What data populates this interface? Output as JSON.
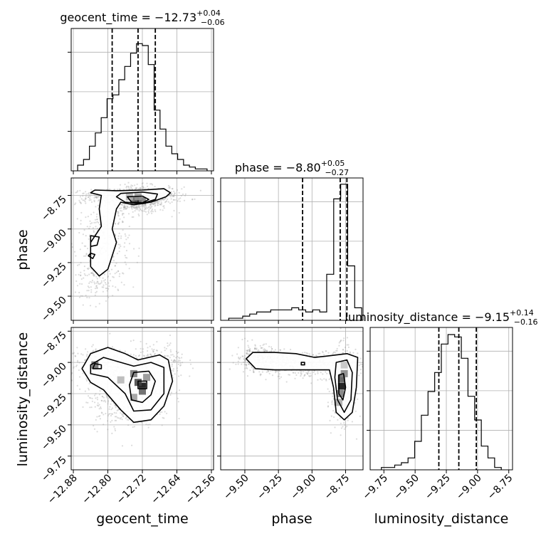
{
  "chart_data": {
    "type": "corner",
    "parameters": [
      "geocent_time",
      "phase",
      "luminosity_distance"
    ],
    "titles": [
      {
        "param": "geocent_time",
        "prefix": "geocent_time = ",
        "median": "−12.73",
        "plus": "+0.04",
        "minus": "−0.06"
      },
      {
        "param": "phase",
        "prefix": "phase = ",
        "median": "−8.80",
        "plus": "+0.05",
        "minus": "−0.27"
      },
      {
        "param": "luminosity_distance",
        "prefix": "luminosity_distance = ",
        "median": "−9.15",
        "plus": "+0.14",
        "minus": "−0.16"
      }
    ],
    "axes": {
      "geocent_time": {
        "range": [
          -12.885,
          -12.555
        ],
        "ticks": [
          -12.88,
          -12.8,
          -12.72,
          -12.64,
          -12.56
        ],
        "tick_labels": [
          "−12.88",
          "−12.80",
          "−12.72",
          "−12.64",
          "−12.56"
        ]
      },
      "phase": {
        "range": [
          -9.68,
          -8.62
        ],
        "ticks": [
          -9.5,
          -9.25,
          -9.0,
          -8.75
        ],
        "tick_labels": [
          "−9.50",
          "−9.25",
          "−9.00",
          "−8.75"
        ]
      },
      "luminosity_distance": {
        "range": [
          -9.86,
          -8.72
        ],
        "ticks": [
          -9.75,
          -9.5,
          -9.25,
          -9.0,
          -8.75
        ],
        "tick_labels": [
          "−9.75",
          "−9.50",
          "−9.25",
          "−9.00",
          "−8.75"
        ]
      }
    },
    "quantiles": {
      "geocent_time": [
        -12.79,
        -12.73,
        -12.69
      ],
      "phase": [
        -9.07,
        -8.79,
        -8.74
      ],
      "luminosity_distance": [
        -9.31,
        -9.15,
        -9.01
      ]
    },
    "histograms": {
      "geocent_time": {
        "edges_range": [
          -12.87,
          -12.57
        ],
        "counts": [
          3,
          6,
          13,
          20,
          28,
          38,
          40,
          48,
          55,
          62,
          67,
          66,
          56,
          32,
          22,
          13,
          9,
          6,
          3,
          2,
          1,
          1
        ],
        "ylim": [
          0,
          75
        ]
      },
      "phase": {
        "edges_range": [
          -9.62,
          -8.63
        ],
        "counts": [
          1,
          1,
          2,
          3,
          4,
          4,
          5,
          5,
          5,
          6,
          5,
          4,
          5,
          4,
          22,
          58,
          65,
          26,
          6
        ],
        "ylim": [
          0,
          68
        ]
      },
      "luminosity_distance": {
        "edges_range": [
          -9.77,
          -8.81
        ],
        "counts": [
          1,
          1,
          2,
          3,
          5,
          12,
          23,
          33,
          41,
          53,
          57,
          56,
          47,
          31,
          21,
          10,
          5,
          1
        ],
        "ylim": [
          0,
          60
        ]
      }
    },
    "density": {
      "phase_vs_geocent_time": {
        "x": "geocent_time",
        "y": "phase",
        "blobs": [
          {
            "cx": -12.73,
            "cy": -8.78,
            "sx": 0.035,
            "sy": 0.05,
            "weight": 0.42
          },
          {
            "cx": -12.79,
            "cy": -8.76,
            "sx": 0.06,
            "sy": 0.03,
            "weight": 0.18
          },
          {
            "cx": -12.69,
            "cy": -8.75,
            "sx": 0.04,
            "sy": 0.03,
            "weight": 0.12
          },
          {
            "cx": -12.81,
            "cy": -9.1,
            "sx": 0.03,
            "sy": 0.14,
            "weight": 0.2
          },
          {
            "cx": -12.83,
            "cy": -9.4,
            "sx": 0.03,
            "sy": 0.08,
            "weight": 0.08
          }
        ],
        "peak_cells": [
          {
            "x": -12.73,
            "y": -8.79,
            "shade": 0.0
          },
          {
            "x": -12.74,
            "y": -8.79,
            "shade": 0.35
          },
          {
            "x": -12.72,
            "y": -8.79,
            "shade": 0.45
          },
          {
            "x": -12.73,
            "y": -8.76,
            "shade": 0.6
          },
          {
            "x": -12.75,
            "y": -8.76,
            "shade": 0.7
          }
        ]
      },
      "luminosity_distance_vs_geocent_time": {
        "x": "geocent_time",
        "y": "luminosity_distance",
        "blobs": [
          {
            "cx": -12.72,
            "cy": -9.19,
            "sx": 0.03,
            "sy": 0.12,
            "weight": 0.38
          },
          {
            "cx": -12.81,
            "cy": -9.02,
            "sx": 0.04,
            "sy": 0.07,
            "weight": 0.25
          },
          {
            "cx": -12.77,
            "cy": -9.3,
            "sx": 0.04,
            "sy": 0.12,
            "weight": 0.22
          },
          {
            "cx": -12.68,
            "cy": -9.0,
            "sx": 0.03,
            "sy": 0.08,
            "weight": 0.15
          }
        ],
        "peak_cells": [
          {
            "x": -12.72,
            "y": -9.19,
            "shade": 0.0
          },
          {
            "x": -12.73,
            "y": -9.16,
            "shade": 0.25
          },
          {
            "x": -12.72,
            "y": -9.23,
            "shade": 0.35
          },
          {
            "x": -12.74,
            "y": -9.09,
            "shade": 0.45
          },
          {
            "x": -12.83,
            "y": -9.02,
            "shade": 0.4
          },
          {
            "x": -12.71,
            "y": -9.12,
            "shade": 0.55
          },
          {
            "x": -12.74,
            "y": -9.28,
            "shade": 0.6
          },
          {
            "x": -12.77,
            "y": -9.14,
            "shade": 0.7
          }
        ]
      },
      "luminosity_distance_vs_phase": {
        "x": "phase",
        "y": "luminosity_distance",
        "blobs": [
          {
            "cx": -8.77,
            "cy": -9.19,
            "sx": 0.04,
            "sy": 0.14,
            "weight": 0.45
          },
          {
            "cx": -9.05,
            "cy": -9.02,
            "sx": 0.22,
            "sy": 0.05,
            "weight": 0.35
          },
          {
            "cx": -9.4,
            "cy": -8.96,
            "sx": 0.08,
            "sy": 0.05,
            "weight": 0.2
          }
        ],
        "peak_cells": [
          {
            "x": -8.78,
            "y": -9.19,
            "shade": 0.0
          },
          {
            "x": -8.78,
            "y": -9.13,
            "shade": 0.3
          },
          {
            "x": -8.76,
            "y": -9.09,
            "shade": 0.5
          },
          {
            "x": -8.79,
            "y": -9.25,
            "shade": 0.45
          },
          {
            "x": -8.8,
            "y": -9.32,
            "shade": 0.65
          },
          {
            "x": -8.76,
            "y": -9.02,
            "shade": 0.75
          }
        ]
      }
    },
    "contours": {
      "phase_vs_geocent_time": [
        [
          [
            -12.83,
            -8.71
          ],
          [
            -12.78,
            -8.715
          ],
          [
            -12.72,
            -8.71
          ],
          [
            -12.67,
            -8.7
          ],
          [
            -12.655,
            -8.73
          ],
          [
            -12.665,
            -8.76
          ],
          [
            -12.7,
            -8.8
          ],
          [
            -12.74,
            -8.82
          ],
          [
            -12.77,
            -8.8
          ],
          [
            -12.78,
            -8.85
          ],
          [
            -12.79,
            -9.0
          ],
          [
            -12.78,
            -9.1
          ],
          [
            -12.79,
            -9.2
          ],
          [
            -12.8,
            -9.3
          ],
          [
            -12.82,
            -9.35
          ],
          [
            -12.84,
            -9.28
          ],
          [
            -12.84,
            -9.1
          ],
          [
            -12.815,
            -8.98
          ],
          [
            -12.82,
            -8.85
          ],
          [
            -12.815,
            -8.75
          ],
          [
            -12.84,
            -8.73
          ],
          [
            -12.83,
            -8.71
          ]
        ],
        [
          [
            -12.77,
            -8.735
          ],
          [
            -12.72,
            -8.725
          ],
          [
            -12.685,
            -8.74
          ],
          [
            -12.69,
            -8.78
          ],
          [
            -12.72,
            -8.81
          ],
          [
            -12.76,
            -8.8
          ],
          [
            -12.78,
            -8.76
          ],
          [
            -12.77,
            -8.735
          ]
        ],
        [
          [
            -12.755,
            -8.76
          ],
          [
            -12.72,
            -8.755
          ],
          [
            -12.705,
            -8.78
          ],
          [
            -12.72,
            -8.805
          ],
          [
            -12.745,
            -8.8
          ],
          [
            -12.755,
            -8.76
          ]
        ],
        [
          [
            -12.84,
            -9.05
          ],
          [
            -12.82,
            -9.06
          ],
          [
            -12.825,
            -9.12
          ],
          [
            -12.84,
            -9.13
          ],
          [
            -12.84,
            -9.05
          ]
        ],
        [
          [
            -12.84,
            -9.18
          ],
          [
            -12.83,
            -9.19
          ],
          [
            -12.835,
            -9.22
          ],
          [
            -12.845,
            -9.2
          ],
          [
            -12.84,
            -9.18
          ]
        ]
      ],
      "luminosity_distance_vs_geocent_time": [
        [
          [
            -12.86,
            -9.05
          ],
          [
            -12.84,
            -8.93
          ],
          [
            -12.8,
            -8.88
          ],
          [
            -12.76,
            -8.93
          ],
          [
            -12.73,
            -8.98
          ],
          [
            -12.68,
            -8.94
          ],
          [
            -12.66,
            -8.98
          ],
          [
            -12.65,
            -9.15
          ],
          [
            -12.67,
            -9.35
          ],
          [
            -12.7,
            -9.46
          ],
          [
            -12.74,
            -9.48
          ],
          [
            -12.77,
            -9.38
          ],
          [
            -12.81,
            -9.22
          ],
          [
            -12.84,
            -9.16
          ],
          [
            -12.86,
            -9.05
          ]
        ],
        [
          [
            -12.84,
            -9.02
          ],
          [
            -12.81,
            -8.96
          ],
          [
            -12.77,
            -9.0
          ],
          [
            -12.74,
            -9.03
          ],
          [
            -12.7,
            -9.0
          ],
          [
            -12.67,
            -9.04
          ],
          [
            -12.67,
            -9.25
          ],
          [
            -12.7,
            -9.38
          ],
          [
            -12.74,
            -9.39
          ],
          [
            -12.76,
            -9.25
          ],
          [
            -12.8,
            -9.12
          ],
          [
            -12.84,
            -9.09
          ],
          [
            -12.84,
            -9.02
          ]
        ],
        [
          [
            -12.74,
            -9.08
          ],
          [
            -12.705,
            -9.07
          ],
          [
            -12.69,
            -9.15
          ],
          [
            -12.7,
            -9.26
          ],
          [
            -12.72,
            -9.32
          ],
          [
            -12.745,
            -9.3
          ],
          [
            -12.75,
            -9.18
          ],
          [
            -12.74,
            -9.08
          ]
        ],
        [
          [
            -12.83,
            -9.01
          ],
          [
            -12.815,
            -9.02
          ],
          [
            -12.815,
            -9.05
          ],
          [
            -12.835,
            -9.05
          ],
          [
            -12.83,
            -9.01
          ]
        ],
        [
          [
            -12.73,
            -9.15
          ],
          [
            -12.71,
            -9.15
          ],
          [
            -12.71,
            -9.21
          ],
          [
            -12.73,
            -9.21
          ],
          [
            -12.73,
            -9.15
          ]
        ]
      ],
      "luminosity_distance_vs_phase": [
        [
          [
            -9.49,
            -8.97
          ],
          [
            -9.44,
            -8.92
          ],
          [
            -9.28,
            -8.92
          ],
          [
            -9.12,
            -8.93
          ],
          [
            -8.98,
            -8.96
          ],
          [
            -8.9,
            -8.95
          ],
          [
            -8.74,
            -8.93
          ],
          [
            -8.66,
            -8.96
          ],
          [
            -8.67,
            -9.2
          ],
          [
            -8.7,
            -9.4
          ],
          [
            -8.76,
            -9.46
          ],
          [
            -8.82,
            -9.4
          ],
          [
            -8.84,
            -9.2
          ],
          [
            -8.87,
            -9.06
          ],
          [
            -8.96,
            -9.06
          ],
          [
            -9.1,
            -9.06
          ],
          [
            -9.28,
            -9.06
          ],
          [
            -9.42,
            -9.05
          ],
          [
            -9.49,
            -8.97
          ]
        ],
        [
          [
            -8.82,
            -9.0
          ],
          [
            -8.74,
            -8.98
          ],
          [
            -8.7,
            -9.08
          ],
          [
            -8.71,
            -9.3
          ],
          [
            -8.76,
            -9.4
          ],
          [
            -8.81,
            -9.3
          ],
          [
            -8.83,
            -9.12
          ],
          [
            -8.82,
            -9.0
          ]
        ],
        [
          [
            -8.8,
            -9.1
          ],
          [
            -8.765,
            -9.09
          ],
          [
            -8.75,
            -9.2
          ],
          [
            -8.77,
            -9.3
          ],
          [
            -8.8,
            -9.25
          ],
          [
            -8.8,
            -9.1
          ]
        ],
        [
          [
            -9.08,
            -9.0
          ],
          [
            -9.055,
            -9.0
          ],
          [
            -9.055,
            -9.02
          ],
          [
            -9.08,
            -9.02
          ],
          [
            -9.08,
            -9.0
          ]
        ]
      ]
    }
  }
}
